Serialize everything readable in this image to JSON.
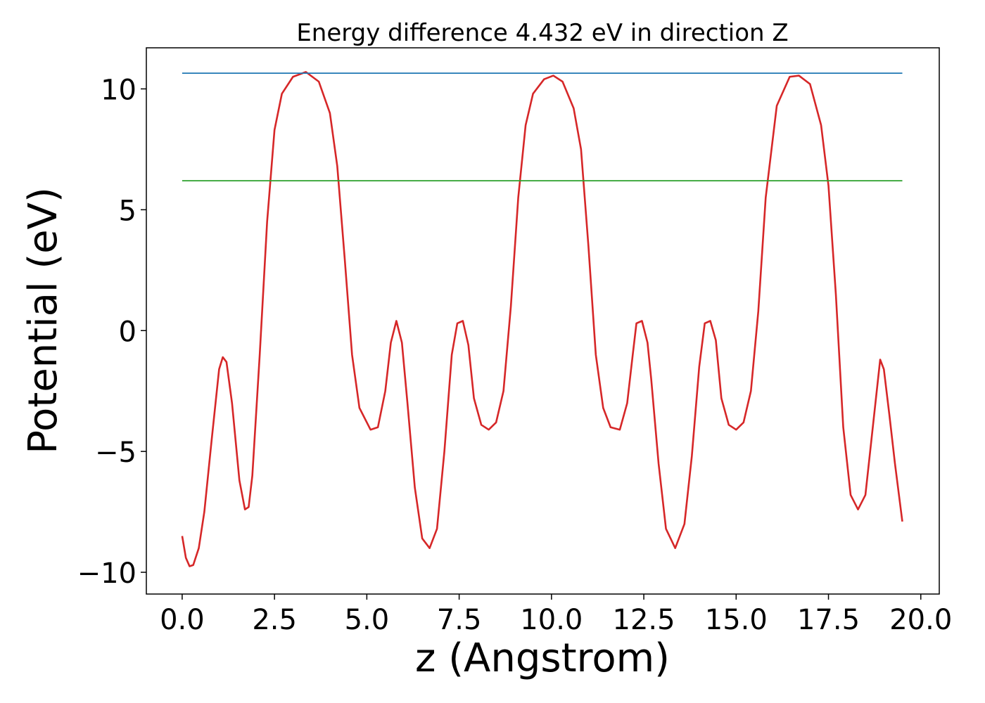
{
  "chart_data": {
    "type": "line",
    "title": "Energy difference 4.432 eV in direction Z",
    "xlabel": "z (Angstrom)",
    "ylabel": "Potential (eV)",
    "xlim": [
      -0.97,
      20.5
    ],
    "ylim": [
      -10.9,
      11.7
    ],
    "xticks": [
      0.0,
      2.5,
      5.0,
      7.5,
      10.0,
      12.5,
      15.0,
      17.5,
      20.0
    ],
    "xtick_labels": [
      "0.0",
      "2.5",
      "5.0",
      "7.5",
      "10.0",
      "12.5",
      "15.0",
      "17.5",
      "20.0"
    ],
    "yticks": [
      -10,
      -5,
      0,
      5,
      10
    ],
    "ytick_labels": [
      "−10",
      "−5",
      "0",
      "5",
      "10"
    ],
    "grid": false,
    "series": [
      {
        "color": "#d62728",
        "x": [
          0.0,
          0.1,
          0.2,
          0.3,
          0.45,
          0.6,
          0.8,
          1.0,
          1.1,
          1.2,
          1.35,
          1.55,
          1.7,
          1.8,
          1.9,
          2.1,
          2.3,
          2.5,
          2.7,
          3.0,
          3.35,
          3.7,
          4.0,
          4.2,
          4.4,
          4.6,
          4.8,
          5.1,
          5.3,
          5.5,
          5.65,
          5.8,
          5.95,
          6.1,
          6.3,
          6.5,
          6.7,
          6.9,
          7.1,
          7.3,
          7.45,
          7.6,
          7.75,
          7.9,
          8.1,
          8.3,
          8.5,
          8.7,
          8.9,
          9.1,
          9.3,
          9.5,
          9.8,
          10.05,
          10.3,
          10.6,
          10.8,
          11.0,
          11.2,
          11.4,
          11.6,
          11.85,
          12.05,
          12.2,
          12.3,
          12.45,
          12.6,
          12.7,
          12.9,
          13.1,
          13.35,
          13.6,
          13.8,
          14.0,
          14.15,
          14.3,
          14.45,
          14.6,
          14.8,
          15.0,
          15.2,
          15.4,
          15.6,
          15.8,
          16.1,
          16.45,
          16.7,
          17.0,
          17.3,
          17.5,
          17.7,
          17.9,
          18.1,
          18.3,
          18.5,
          18.7,
          18.9,
          19.0,
          19.15,
          19.3,
          19.5
        ],
        "y": [
          -8.5,
          -9.4,
          -9.75,
          -9.7,
          -9.0,
          -7.5,
          -4.5,
          -1.6,
          -1.1,
          -1.3,
          -3.0,
          -6.2,
          -7.4,
          -7.3,
          -6.0,
          -1.0,
          4.5,
          8.3,
          9.8,
          10.5,
          10.7,
          10.3,
          9.0,
          6.8,
          3.0,
          -1.0,
          -3.2,
          -4.1,
          -4.0,
          -2.5,
          -0.5,
          0.4,
          -0.5,
          -3.0,
          -6.5,
          -8.6,
          -9.0,
          -8.2,
          -5.0,
          -1.0,
          0.3,
          0.4,
          -0.6,
          -2.8,
          -3.9,
          -4.1,
          -3.8,
          -2.5,
          1.0,
          5.5,
          8.5,
          9.8,
          10.4,
          10.55,
          10.3,
          9.2,
          7.5,
          3.5,
          -1.0,
          -3.2,
          -4.0,
          -4.1,
          -3.0,
          -1.0,
          0.3,
          0.4,
          -0.5,
          -2.0,
          -5.5,
          -8.2,
          -9.0,
          -8.0,
          -5.2,
          -1.5,
          0.3,
          0.4,
          -0.4,
          -2.8,
          -3.9,
          -4.1,
          -3.8,
          -2.5,
          0.8,
          5.5,
          9.3,
          10.5,
          10.55,
          10.2,
          8.5,
          6.0,
          1.5,
          -4.0,
          -6.8,
          -7.4,
          -6.8,
          -4.0,
          -1.2,
          -1.6,
          -3.5,
          -5.5,
          -7.9
        ]
      },
      {
        "color": "#1f77b4",
        "x": [
          0.0,
          19.5
        ],
        "y": [
          10.65,
          10.65
        ]
      },
      {
        "color": "#2ca02c",
        "x": [
          0.0,
          19.5
        ],
        "y": [
          6.2,
          6.2
        ]
      }
    ]
  }
}
